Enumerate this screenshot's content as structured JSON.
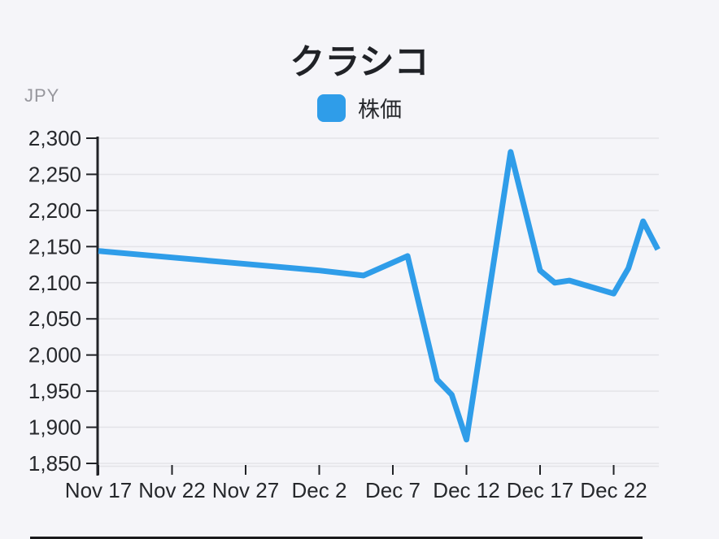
{
  "title": "クラシコ",
  "legend": {
    "label": "株価",
    "swatch_color": "#2F9DE9"
  },
  "y_axis_unit": "JPY",
  "colors": {
    "background": "#F5F5F9",
    "line": "#2F9DE9",
    "grid": "#E3E3E8",
    "axis": "#212327",
    "tick_text": "#26282C",
    "muted_text": "#97979D",
    "bottom_bar": "#1A1A1C"
  },
  "chart_data": {
    "type": "line",
    "title": "クラシコ",
    "ylabel": "JPY",
    "xlabel": "",
    "legend": [
      "株価"
    ],
    "legend_position": "top",
    "grid": true,
    "ylim": [
      1850,
      2300
    ],
    "y_ticks": [
      2300,
      2250,
      2200,
      2150,
      2100,
      2050,
      2000,
      1950,
      1900,
      1850
    ],
    "y_tick_labels": [
      "2,300",
      "2,250",
      "2,200",
      "2,150",
      "2,100",
      "2,050",
      "2,000",
      "1,950",
      "1,900",
      "1,850"
    ],
    "x_tick_labels": [
      "Nov 17",
      "Nov 22",
      "Nov 27",
      "Dec 2",
      "Dec 7",
      "Dec 12",
      "Dec 17",
      "Dec 22"
    ],
    "x_tick_days": [
      0,
      5,
      10,
      15,
      20,
      25,
      30,
      35
    ],
    "series": [
      {
        "name": "株価",
        "color": "#2F9DE9",
        "points": [
          {
            "x": "Nov 17",
            "day": 0,
            "y": 2144
          },
          {
            "x": "Nov 22",
            "day": 5,
            "y": 2135
          },
          {
            "x": "Nov 27",
            "day": 10,
            "y": 2126
          },
          {
            "x": "Dec 2",
            "day": 15,
            "y": 2117
          },
          {
            "x": "Dec 5",
            "day": 18,
            "y": 2110
          },
          {
            "x": "Dec 8",
            "day": 21,
            "y": 2137
          },
          {
            "x": "Dec 10",
            "day": 23,
            "y": 1966
          },
          {
            "x": "Dec 11",
            "day": 24,
            "y": 1945
          },
          {
            "x": "Dec 12",
            "day": 25,
            "y": 1883
          },
          {
            "x": "Dec 15",
            "day": 28,
            "y": 2281
          },
          {
            "x": "Dec 17",
            "day": 30,
            "y": 2117
          },
          {
            "x": "Dec 18",
            "day": 31,
            "y": 2100
          },
          {
            "x": "Dec 19",
            "day": 32,
            "y": 2103
          },
          {
            "x": "Dec 22",
            "day": 35,
            "y": 2085
          },
          {
            "x": "Dec 23",
            "day": 36,
            "y": 2120
          },
          {
            "x": "Dec 24",
            "day": 37,
            "y": 2185
          },
          {
            "x": "Dec 25",
            "day": 38,
            "y": 2146
          }
        ]
      }
    ]
  }
}
